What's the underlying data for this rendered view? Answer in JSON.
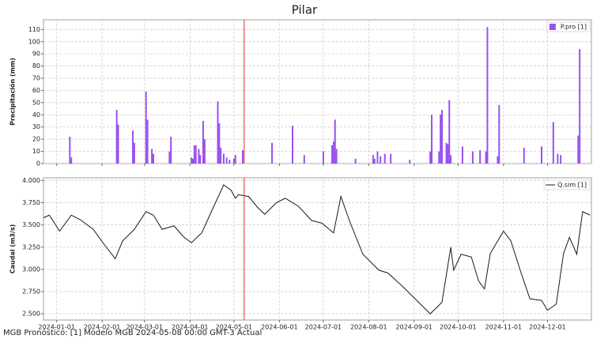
{
  "title": "Pilar",
  "footer": "MGB Pronóstico: [1] Modelo MGB 2024-05-08 00:00 GMT-3 Actual",
  "marker": {
    "x": "2024-05-08",
    "color": "#e03030"
  },
  "chart_data": [
    {
      "type": "bar",
      "y_label": "Precipitación (mm)",
      "xlim": [
        "2023-12-23",
        "2024-12-31"
      ],
      "ylim": [
        0,
        118
      ],
      "yticks": [
        0,
        10,
        20,
        30,
        40,
        50,
        60,
        70,
        80,
        90,
        100,
        110
      ],
      "grid": true,
      "legend": "upper right",
      "x": [
        "2024-01-10",
        "2024-01-11",
        "2024-02-11",
        "2024-02-12",
        "2024-02-22",
        "2024-02-23",
        "2024-03-02",
        "2024-03-03",
        "2024-03-06",
        "2024-03-07",
        "2024-03-18",
        "2024-03-19",
        "2024-04-02",
        "2024-04-03",
        "2024-04-04",
        "2024-04-05",
        "2024-04-07",
        "2024-04-08",
        "2024-04-10",
        "2024-04-11",
        "2024-04-20",
        "2024-04-21",
        "2024-04-22",
        "2024-04-24",
        "2024-04-26",
        "2024-04-28",
        "2024-05-01",
        "2024-05-02",
        "2024-05-07",
        "2024-05-27",
        "2024-06-10",
        "2024-06-18",
        "2024-07-01",
        "2024-07-07",
        "2024-07-08",
        "2024-07-09",
        "2024-07-10",
        "2024-07-23",
        "2024-08-04",
        "2024-08-05",
        "2024-08-07",
        "2024-08-09",
        "2024-08-12",
        "2024-08-16",
        "2024-08-29",
        "2024-09-12",
        "2024-09-13",
        "2024-09-18",
        "2024-09-19",
        "2024-09-20",
        "2024-09-23",
        "2024-09-24",
        "2024-09-25",
        "2024-09-26",
        "2024-10-04",
        "2024-10-11",
        "2024-10-16",
        "2024-10-20",
        "2024-10-21",
        "2024-10-28",
        "2024-10-29",
        "2024-11-15",
        "2024-11-27",
        "2024-12-05",
        "2024-12-08",
        "2024-12-10",
        "2024-12-22",
        "2024-12-23"
      ],
      "series": [
        {
          "name": "P.pro [1]",
          "color": "#9a50f0",
          "values": [
            22,
            5,
            44,
            32,
            27,
            17,
            59,
            36,
            12,
            8,
            10,
            22,
            5,
            4,
            15,
            15,
            12,
            7,
            35,
            20,
            51,
            33,
            13,
            8,
            5,
            3,
            4,
            7,
            11,
            17,
            31,
            7,
            10,
            15,
            18,
            36,
            12,
            4,
            7,
            4,
            10,
            6,
            8,
            8,
            3,
            10,
            40,
            10,
            40,
            44,
            17,
            16,
            52,
            7,
            14,
            10,
            11,
            10,
            112,
            6,
            48,
            13,
            14,
            34,
            8,
            7,
            23,
            94
          ]
        }
      ]
    },
    {
      "type": "line",
      "y_label": "Caudal (m3/s)",
      "xlim": [
        "2023-12-23",
        "2024-12-31"
      ],
      "ylim": [
        2.43,
        4.03
      ],
      "yticks": [
        {
          "value": 2.5,
          "label": "2.500"
        },
        {
          "value": 2.75,
          "label": "2.750"
        },
        {
          "value": 3,
          "label": "3.000"
        },
        {
          "value": 3.25,
          "label": "3.250"
        },
        {
          "value": 3.5,
          "label": "3.500"
        },
        {
          "value": 3.75,
          "label": "3.750"
        },
        {
          "value": 4,
          "label": "4.000"
        }
      ],
      "xticks": [
        "2024-01-01",
        "2024-02-01",
        "2024-03-01",
        "2024-04-01",
        "2024-05-01",
        "2024-06-01",
        "2024-07-01",
        "2024-08-01",
        "2024-09-01",
        "2024-10-01",
        "2024-11-01",
        "2024-12-01"
      ],
      "grid": true,
      "legend": "upper right",
      "x": [
        "2023-12-23",
        "2023-12-27",
        "2024-01-03",
        "2024-01-11",
        "2024-01-17",
        "2024-01-26",
        "2024-02-02",
        "2024-02-10",
        "2024-02-15",
        "2024-02-23",
        "2024-03-02",
        "2024-03-07",
        "2024-03-13",
        "2024-03-21",
        "2024-03-28",
        "2024-04-02",
        "2024-04-09",
        "2024-04-17",
        "2024-04-24",
        "2024-04-29",
        "2024-05-02",
        "2024-05-04",
        "2024-05-11",
        "2024-05-17",
        "2024-05-22",
        "2024-05-30",
        "2024-06-05",
        "2024-06-14",
        "2024-06-23",
        "2024-06-30",
        "2024-07-08",
        "2024-07-13",
        "2024-07-19",
        "2024-07-28",
        "2024-08-08",
        "2024-08-14",
        "2024-08-24",
        "2024-09-04",
        "2024-09-12",
        "2024-09-20",
        "2024-09-26",
        "2024-09-28",
        "2024-10-03",
        "2024-10-10",
        "2024-10-15",
        "2024-10-19",
        "2024-10-23",
        "2024-11-01",
        "2024-11-06",
        "2024-11-13",
        "2024-11-19",
        "2024-11-27",
        "2024-12-01",
        "2024-12-07",
        "2024-12-12",
        "2024-12-16",
        "2024-12-21",
        "2024-12-25",
        "2024-12-30"
      ],
      "series": [
        {
          "name": "Q.sim [1]",
          "color": "#1a1a1a",
          "values": [
            3.58,
            3.61,
            3.43,
            3.61,
            3.56,
            3.45,
            3.29,
            3.12,
            3.32,
            3.45,
            3.65,
            3.61,
            3.45,
            3.49,
            3.36,
            3.3,
            3.41,
            3.7,
            3.95,
            3.89,
            3.8,
            3.84,
            3.82,
            3.7,
            3.62,
            3.75,
            3.8,
            3.71,
            3.55,
            3.52,
            3.41,
            3.82,
            3.54,
            3.17,
            2.99,
            2.96,
            2.81,
            2.63,
            2.5,
            2.63,
            3.25,
            2.99,
            3.17,
            3.14,
            2.87,
            2.78,
            3.18,
            3.43,
            3.32,
            2.96,
            2.67,
            2.65,
            2.54,
            2.61,
            3.18,
            3.36,
            3.17,
            3.65,
            3.61
          ]
        }
      ]
    }
  ]
}
